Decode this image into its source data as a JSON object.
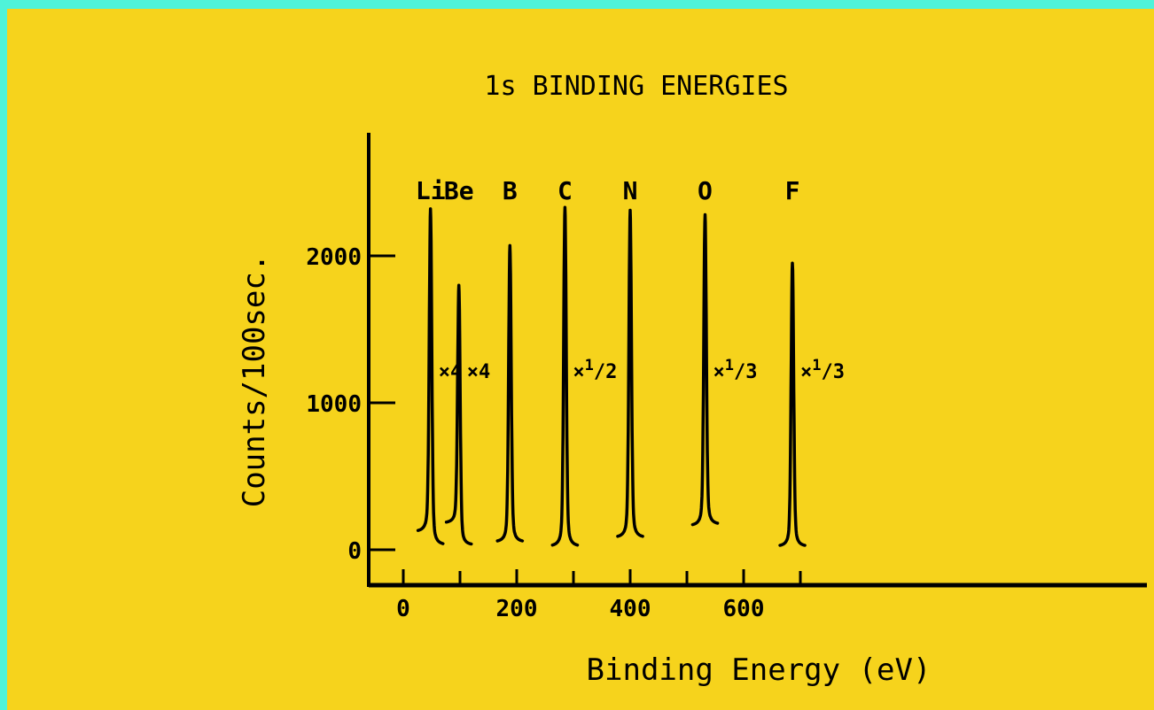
{
  "chart_data": {
    "type": "line",
    "title": "1s BINDING ENERGIES",
    "xlabel": "Binding Energy (eV)",
    "ylabel": "Counts/100sec.",
    "xlim": [
      -20,
      720
    ],
    "ylim": [
      -200,
      2800
    ],
    "x_ticks": [
      0,
      200,
      400,
      600
    ],
    "x_minor_ticks": [
      100,
      300,
      500,
      700
    ],
    "y_ticks": [
      0,
      1000,
      2000
    ],
    "grid": false,
    "series": [
      {
        "name": "Li",
        "x_peak": 48,
        "peak": 2320,
        "baseline_left": 120,
        "baseline_right": 30,
        "scale": "×4"
      },
      {
        "name": "Be",
        "x_peak": 98,
        "peak": 1800,
        "baseline_left": 180,
        "baseline_right": 30,
        "scale": "×4"
      },
      {
        "name": "B",
        "x_peak": 188,
        "peak": 2070,
        "baseline_left": 50,
        "baseline_right": 50,
        "scale": ""
      },
      {
        "name": "C",
        "x_peak": 285,
        "peak": 2330,
        "baseline_left": 20,
        "baseline_right": 20,
        "scale": "×1/2"
      },
      {
        "name": "N",
        "x_peak": 400,
        "peak": 2310,
        "baseline_left": 80,
        "baseline_right": 80,
        "scale": ""
      },
      {
        "name": "O",
        "x_peak": 532,
        "peak": 2280,
        "baseline_left": 160,
        "baseline_right": 170,
        "scale": "×1/3"
      },
      {
        "name": "F",
        "x_peak": 686,
        "peak": 1950,
        "baseline_left": 20,
        "baseline_right": 20,
        "scale": "×1/3"
      }
    ]
  }
}
